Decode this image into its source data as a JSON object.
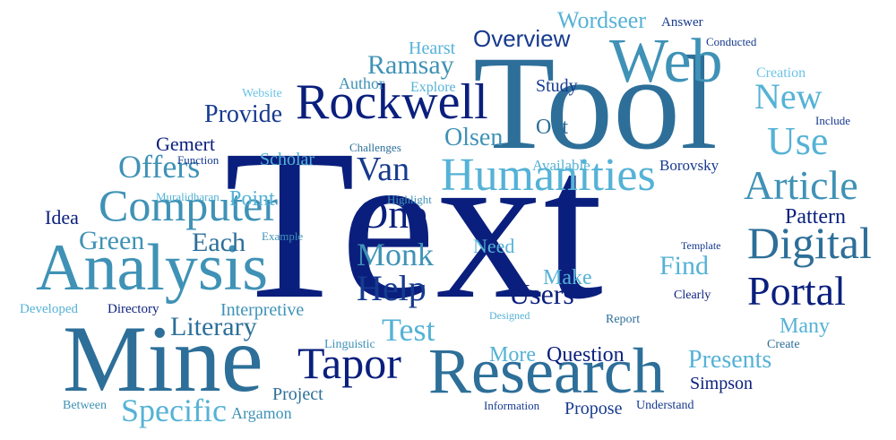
{
  "words": {
    "text": "Text",
    "tool": "Tool",
    "mine": "Mine",
    "analysis": "Analysis",
    "research": "Research",
    "rockwell": "Rockwell",
    "humanities": "Humanities",
    "web": "Web",
    "computer": "Computer",
    "digital": "Digital",
    "tapor": "Tapor",
    "article": "Article",
    "portal": "Portal",
    "one": "One",
    "use": "Use",
    "help": "Help",
    "new": "New",
    "specific": "Specific",
    "offers": "Offers",
    "van": "Van",
    "monk": "Monk",
    "test": "Test",
    "overview": "Overview",
    "wordseer": "Wordseer",
    "ramsay": "Ramsay",
    "provide": "Provide",
    "literary": "Literary",
    "users": "Users",
    "green": "Green",
    "each": "Each",
    "olsen": "Olsen",
    "find": "Find",
    "presents": "Presents",
    "question": "Question",
    "pattern": "Pattern",
    "point": "Point",
    "more": "More",
    "make": "Make",
    "many": "Many",
    "out": "Out",
    "need": "Need",
    "idea": "Idea",
    "gemert": "Gemert",
    "project": "Project",
    "simpson": "Simpson",
    "interpretive": "Interpretive",
    "argamon": "Argamon",
    "propose": "Propose",
    "hearst": "Hearst",
    "author": "Author",
    "study": "Study",
    "scholar": "Scholar",
    "available": "Available",
    "borovsky": "Borovsky",
    "creation": "Creation",
    "answer": "Answer",
    "conducted": "Conducted",
    "include": "Include",
    "website": "Website",
    "explore": "Explore",
    "challenges": "Challenges",
    "function": "Function",
    "muralidharan": "Muralidharan",
    "highlight": "Highlight",
    "example": "Example",
    "template": "Template",
    "clearly": "Clearly",
    "report": "Report",
    "create": "Create",
    "understand": "Understand",
    "information": "Information",
    "between": "Between",
    "developed": "Developed",
    "directory": "Directory",
    "designed": "Designed",
    "linguistic": "Linguistic"
  }
}
